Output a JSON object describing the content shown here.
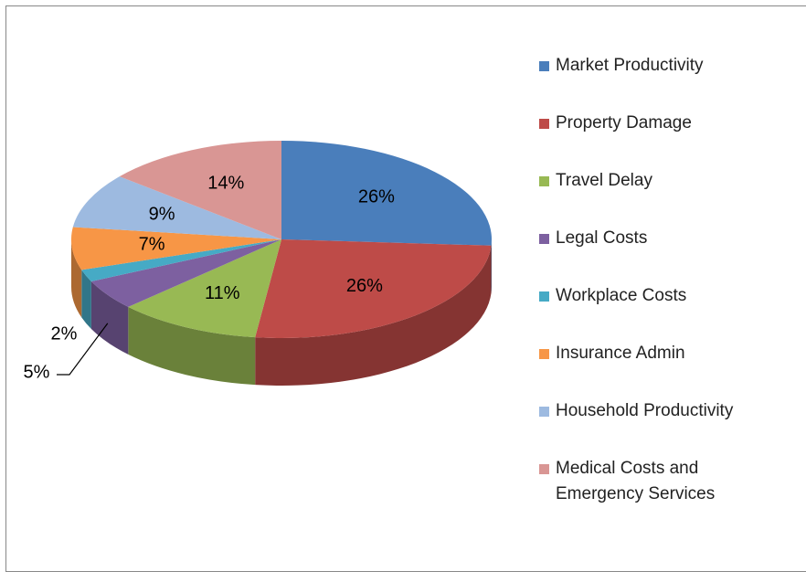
{
  "chart_data": {
    "type": "pie3d",
    "categories": [
      "Market Productivity",
      "Property Damage",
      "Travel Delay",
      "Legal Costs",
      "Workplace Costs",
      "Insurance Admin",
      "Household Productivity",
      "Medical Costs and Emergency Services"
    ],
    "values": [
      26,
      26,
      11,
      5,
      2,
      7,
      9,
      14
    ],
    "value_labels": [
      "26%",
      "26%",
      "11%",
      "5%",
      "2%",
      "7%",
      "9%",
      "14%"
    ],
    "colors": [
      "#4a7ebb",
      "#be4b48",
      "#98b954",
      "#7d60a0",
      "#46aac5",
      "#f79646",
      "#9dbae0",
      "#d99694"
    ],
    "legend": "right"
  }
}
